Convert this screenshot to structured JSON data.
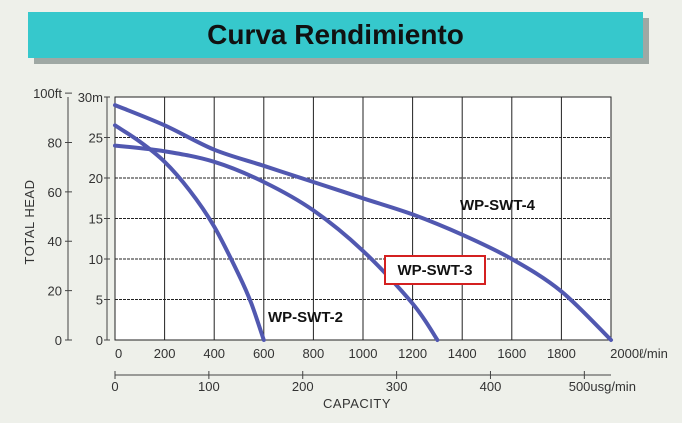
{
  "title": "Curva Rendimiento",
  "colors": {
    "banner": "#36c8cc",
    "curve": "#5158b0",
    "highlight": "#d42020",
    "grid": "#222222",
    "plot_bg": "#ffffff"
  },
  "chart_data": {
    "type": "line",
    "title": "Curva Rendimiento",
    "xlabel": "CAPACITY",
    "ylabel": "TOTAL HEAD",
    "x_unit_primary": "ℓ/min",
    "x_unit_secondary": "usg/min",
    "y_unit_primary": "m",
    "y_unit_secondary": "ft",
    "xlim": [
      0,
      2000
    ],
    "ylim": [
      0,
      30
    ],
    "grid": true,
    "x_ticks": [
      "0",
      "200",
      "400",
      "600",
      "800",
      "1000",
      "1200",
      "1400",
      "1600",
      "1800",
      "2000ℓ/min"
    ],
    "x_ticks_secondary": [
      "0",
      "100",
      "200",
      "300",
      "400",
      "500usg/min"
    ],
    "y_ticks": [
      "0",
      "5",
      "10",
      "15",
      "20",
      "25",
      "30m"
    ],
    "y_ticks_secondary": [
      "0",
      "20",
      "40",
      "60",
      "80",
      "100ft"
    ],
    "series": [
      {
        "name": "WP-SWT-2",
        "x": [
          0,
          100,
          200,
          300,
          400,
          500,
          550,
          600
        ],
        "y": [
          26.5,
          24.5,
          22,
          18.5,
          14,
          8,
          4.5,
          0
        ]
      },
      {
        "name": "WP-SWT-3",
        "x": [
          0,
          200,
          400,
          600,
          800,
          1000,
          1200,
          1300
        ],
        "y": [
          24,
          23.3,
          22,
          19.5,
          16,
          11,
          4.5,
          0
        ]
      },
      {
        "name": "WP-SWT-4",
        "x": [
          0,
          200,
          400,
          600,
          800,
          1000,
          1200,
          1400,
          1600,
          1800,
          2000
        ],
        "y": [
          29,
          26.5,
          23.5,
          21.5,
          19.5,
          17.5,
          15.5,
          13,
          10,
          6,
          0
        ]
      }
    ],
    "highlighted_series": "WP-SWT-3"
  }
}
